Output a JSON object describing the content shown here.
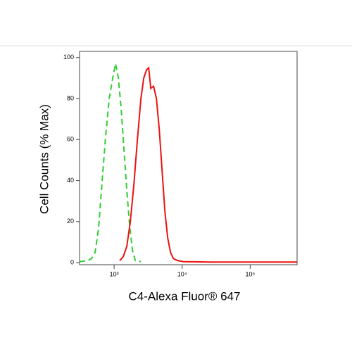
{
  "chart_data": {
    "type": "line",
    "x_label": "C4-Alexa Fluor® 647",
    "y_label": "Cell Counts (% Max)",
    "x_scale": "log",
    "xlim": [
      310,
      490000
    ],
    "ylim": [
      -1,
      103
    ],
    "xticks": [
      {
        "value": 1000,
        "label": "10³"
      },
      {
        "value": 10000,
        "label": "10⁴"
      },
      {
        "value": 100000,
        "label": "10⁵"
      }
    ],
    "yticks": [
      0,
      20,
      40,
      60,
      80,
      100
    ],
    "series": [
      {
        "color": "#33cc33",
        "dashed": true,
        "x": [
          310,
          414,
          466,
          525,
          591,
          667,
          751,
          846,
          953,
          1049,
          1154,
          1269,
          1397,
          1537,
          1690,
          1859,
          2046,
          2476
        ],
        "values": [
          0.5,
          1,
          2,
          5,
          17,
          40,
          62,
          80,
          90,
          97,
          90,
          75,
          55,
          35,
          18,
          6,
          1,
          0.5
        ]
      },
      {
        "color": "#ee1111",
        "dashed": false,
        "x": [
          1210,
          1364,
          1537,
          1730,
          1950,
          2198,
          2476,
          2725,
          2998,
          3220,
          3458,
          3805,
          4187,
          4607,
          5069,
          5577,
          6137,
          6752,
          7429,
          8565,
          10370,
          26920,
          490000
        ],
        "values": [
          1,
          3,
          8,
          20,
          38,
          60,
          80,
          90,
          94,
          95,
          85,
          86,
          80,
          65,
          45,
          25,
          12,
          5,
          2,
          1,
          0.5,
          0.3,
          0.3
        ]
      }
    ]
  }
}
